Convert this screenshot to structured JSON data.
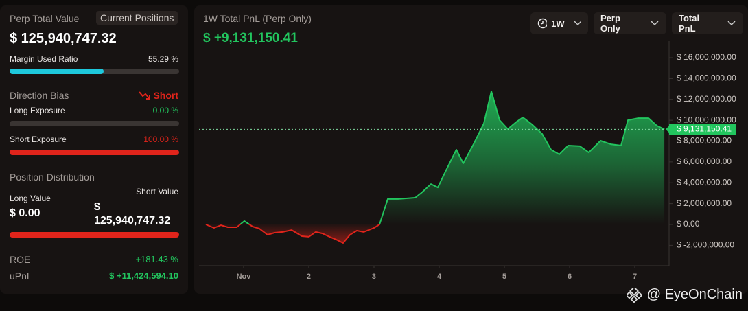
{
  "positions_panel": {
    "title": "Perp Total Value",
    "tab": "Current Positions",
    "total": "$ 125,940,747.32",
    "margin_label": "Margin Used Ratio",
    "margin_ratio": {
      "value": 55.29,
      "label": "55.29 %"
    },
    "margin_color": "#1ec8dc",
    "bias_label": "Direction Bias",
    "bias_value": "Short",
    "long_label": "Long Exposure",
    "long_exposure": {
      "value": 0,
      "label": "0.00 %"
    },
    "short_label": "Short Exposure",
    "short_exposure": {
      "value": 100,
      "label": "100.00 %"
    },
    "distribution_label": "Position Distribution",
    "long_value_label": "Long Value",
    "long_value": "$ 0.00",
    "short_value_label": "Short Value",
    "short_value": "$ 125,940,747.32",
    "roe_label": "ROE",
    "roe": "+181.43 %",
    "upnl_label": "uPnL",
    "upnl": "$ +11,424,594.10"
  },
  "pnl_panel": {
    "title": "1W Total PnL (Perp Only)",
    "total": "$ +9,131,150.41",
    "buttons": [
      "1W",
      "Perp Only",
      "Total PnL"
    ]
  },
  "chart_data": {
    "type": "area",
    "x": [
      0.421,
      0.547,
      0.653,
      0.758,
      0.895,
      1.011,
      1.137,
      1.242,
      1.368,
      1.474,
      1.6,
      1.737,
      1.895,
      2.0,
      2.105,
      2.211,
      2.316,
      2.421,
      2.526,
      2.632,
      2.737,
      2.842,
      3.0,
      3.084,
      3.211,
      3.368,
      3.632,
      3.737,
      3.874,
      3.979,
      4.105,
      4.263,
      4.368,
      4.526,
      4.684,
      4.8,
      4.926,
      5.053,
      5.179,
      5.284,
      5.421,
      5.579,
      5.716,
      5.842,
      5.979,
      6.158,
      6.295,
      6.474,
      6.632,
      6.789,
      6.895,
      7.053,
      7.211,
      7.337,
      7.453
    ],
    "values": [
      0,
      -330000,
      -70000,
      -260000,
      -260000,
      330000,
      -200000,
      -400000,
      -990000,
      -790000,
      -720000,
      -530000,
      -1120000,
      -1180000,
      -720000,
      -860000,
      -1180000,
      -1450000,
      -1780000,
      -990000,
      -590000,
      -720000,
      -330000,
      0,
      2440000,
      2440000,
      2570000,
      3090000,
      3880000,
      3550000,
      5200000,
      7180000,
      5860000,
      7700000,
      9680000,
      12770000,
      10010000,
      9150000,
      9810000,
      10270000,
      9610000,
      8690000,
      7180000,
      6720000,
      7570000,
      7510000,
      6910000,
      8030000,
      7700000,
      7570000,
      10010000,
      10200000,
      10200000,
      9480000,
      9131150.41
    ],
    "positive_color": "#22c55e",
    "negative_color": "#e0241b",
    "xlim": [
      0.316,
      7.526
    ],
    "xticks": [
      {
        "value": 1,
        "label": "Nov"
      },
      2,
      3,
      4,
      5,
      6,
      7
    ],
    "ylim": [
      -3950000,
      17580000
    ],
    "yticks": [
      {
        "value": -2000000,
        "label": "$ -2,000,000.00"
      },
      {
        "value": 0,
        "label": "$ 0.00"
      },
      {
        "value": 2000000,
        "label": "$ 2,000,000.00"
      },
      {
        "value": 4000000,
        "label": "$ 4,000,000.00"
      },
      {
        "value": 6000000,
        "label": "$ 6,000,000.00"
      },
      {
        "value": 8000000,
        "label": "$ 8,000,000.00"
      },
      {
        "value": 10000000,
        "label": "$ 10,000,000.00"
      },
      {
        "value": 12000000,
        "label": "$ 12,000,000.00"
      },
      {
        "value": 14000000,
        "label": "$ 14,000,000.00"
      },
      {
        "value": 16000000,
        "label": "$ 16,000,000.00"
      }
    ],
    "current": {
      "value": 9131150.41,
      "label": "$ 9,131,150.41"
    },
    "grid": false
  },
  "watermark": "@ EyeOnChain"
}
